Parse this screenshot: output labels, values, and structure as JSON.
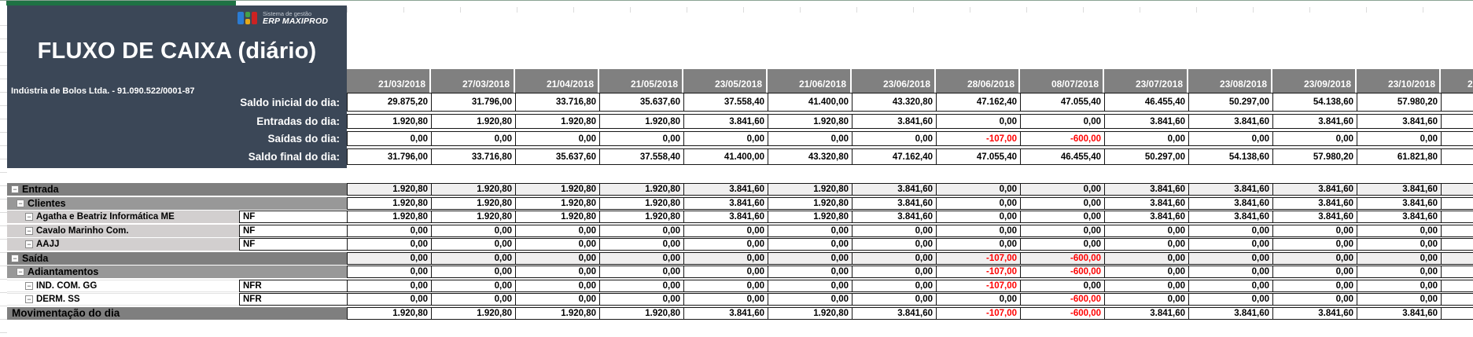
{
  "app": {
    "logo_brand_top": "Sistema de gestão",
    "logo_brand_bottom": "ERP MAXIPROD",
    "title": "FLUXO DE CAIXA (diário)",
    "company": "Indústria de Bolos Ltda. - 91.090.522/0001-87"
  },
  "colors": {
    "panel": "#3b4757",
    "accent_green": "#1f7244",
    "header_gray": "#808080",
    "band1_gray": "#7f7f7f",
    "band2_gray": "#989898",
    "leaf_gray": "#d2cfcf",
    "value_band_gray": "#f0efef",
    "negative_red": "#ff0000",
    "logo_blue": "#2b7cd3",
    "logo_green": "#43a047",
    "logo_yellow": "#e6a817",
    "logo_red": "#cc2222"
  },
  "dates": [
    "21/03/2018",
    "27/03/2018",
    "21/04/2018",
    "21/05/2018",
    "23/05/2018",
    "21/06/2018",
    "23/06/2018",
    "28/06/2018",
    "08/07/2018",
    "23/07/2018",
    "23/08/2018",
    "23/09/2018",
    "23/10/2018"
  ],
  "clipped_date": "2",
  "summary_rows": [
    {
      "label": "Saldo inicial do dia:",
      "values": [
        "29.875,20",
        "31.796,00",
        "33.716,80",
        "35.637,60",
        "37.558,40",
        "41.400,00",
        "43.320,80",
        "47.162,40",
        "47.055,40",
        "46.455,40",
        "50.297,00",
        "54.138,60",
        "57.980,20"
      ]
    },
    {
      "label": "Entradas do dia:",
      "values": [
        "1.920,80",
        "1.920,80",
        "1.920,80",
        "1.920,80",
        "3.841,60",
        "1.920,80",
        "3.841,60",
        "0,00",
        "0,00",
        "3.841,60",
        "3.841,60",
        "3.841,60",
        "3.841,60"
      ]
    },
    {
      "label": "Saídas do dia:",
      "values": [
        "0,00",
        "0,00",
        "0,00",
        "0,00",
        "0,00",
        "0,00",
        "0,00",
        "-107,00",
        "-600,00",
        "0,00",
        "0,00",
        "0,00",
        "0,00"
      ]
    },
    {
      "label": "Saldo final do dia:",
      "values": [
        "31.796,00",
        "33.716,80",
        "35.637,60",
        "37.558,40",
        "41.400,00",
        "43.320,80",
        "47.162,40",
        "47.055,40",
        "46.455,40",
        "50.297,00",
        "54.138,60",
        "57.980,20",
        "61.821,80"
      ]
    }
  ],
  "detail_rows": [
    {
      "label": "Entrada",
      "style": "band1",
      "doc": "",
      "values": [
        "1.920,80",
        "1.920,80",
        "1.920,80",
        "1.920,80",
        "3.841,60",
        "1.920,80",
        "3.841,60",
        "0,00",
        "0,00",
        "3.841,60",
        "3.841,60",
        "3.841,60",
        "3.841,60"
      ]
    },
    {
      "label": "Clientes",
      "style": "band2",
      "doc": "",
      "values": [
        "1.920,80",
        "1.920,80",
        "1.920,80",
        "1.920,80",
        "3.841,60",
        "1.920,80",
        "3.841,60",
        "0,00",
        "0,00",
        "3.841,60",
        "3.841,60",
        "3.841,60",
        "3.841,60"
      ]
    },
    {
      "label": "Agatha e Beatriz Informática ME",
      "style": "leaf-gray",
      "doc": "NF",
      "values": [
        "1.920,80",
        "1.920,80",
        "1.920,80",
        "1.920,80",
        "3.841,60",
        "1.920,80",
        "3.841,60",
        "0,00",
        "0,00",
        "3.841,60",
        "3.841,60",
        "3.841,60",
        "3.841,60"
      ]
    },
    {
      "label": "Cavalo Marinho Com.",
      "style": "leaf-gray",
      "doc": "NF",
      "values": [
        "0,00",
        "0,00",
        "0,00",
        "0,00",
        "0,00",
        "0,00",
        "0,00",
        "0,00",
        "0,00",
        "0,00",
        "0,00",
        "0,00",
        "0,00"
      ]
    },
    {
      "label": "AAJJ",
      "style": "leaf-gray",
      "doc": "NF",
      "values": [
        "0,00",
        "0,00",
        "0,00",
        "0,00",
        "0,00",
        "0,00",
        "0,00",
        "0,00",
        "0,00",
        "0,00",
        "0,00",
        "0,00",
        "0,00"
      ]
    },
    {
      "label": "Saída",
      "style": "band1",
      "doc": "",
      "values": [
        "0,00",
        "0,00",
        "0,00",
        "0,00",
        "0,00",
        "0,00",
        "0,00",
        "-107,00",
        "-600,00",
        "0,00",
        "0,00",
        "0,00",
        "0,00"
      ]
    },
    {
      "label": "Adiantamentos",
      "style": "band2",
      "doc": "",
      "values": [
        "0,00",
        "0,00",
        "0,00",
        "0,00",
        "0,00",
        "0,00",
        "0,00",
        "-107,00",
        "-600,00",
        "0,00",
        "0,00",
        "0,00",
        "0,00"
      ]
    },
    {
      "label": "IND. COM. GG",
      "style": "leaf-white",
      "doc": "NFR",
      "values": [
        "0,00",
        "0,00",
        "0,00",
        "0,00",
        "0,00",
        "0,00",
        "0,00",
        "-107,00",
        "0,00",
        "0,00",
        "0,00",
        "0,00",
        "0,00"
      ]
    },
    {
      "label": "DERM. SS",
      "style": "leaf-white",
      "doc": "NFR",
      "values": [
        "0,00",
        "0,00",
        "0,00",
        "0,00",
        "0,00",
        "0,00",
        "0,00",
        "0,00",
        "-600,00",
        "0,00",
        "0,00",
        "0,00",
        "0,00"
      ]
    },
    {
      "label": "Movimentação do dia",
      "style": "band-total",
      "doc": "",
      "values": [
        "1.920,80",
        "1.920,80",
        "1.920,80",
        "1.920,80",
        "3.841,60",
        "1.920,80",
        "3.841,60",
        "-107,00",
        "-600,00",
        "3.841,60",
        "3.841,60",
        "3.841,60",
        "3.841,60"
      ]
    }
  ]
}
